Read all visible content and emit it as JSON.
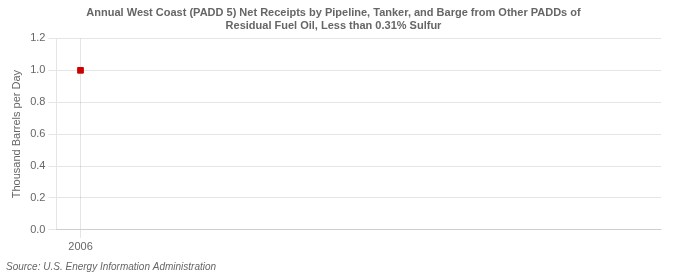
{
  "chart_data": {
    "type": "scatter",
    "title": "Annual West Coast (PADD 5) Net Receipts by Pipeline, Tanker, and Barge from Other PADDs of\nResidual Fuel Oil, Less than 0.31% Sulfur",
    "ylabel": "Thousand Barrels per Day",
    "source": "Source: U.S. Energy Information Administration",
    "x": [
      2006
    ],
    "values": [
      1.0
    ],
    "color": "#cc0000",
    "marker": "square",
    "xlim": [
      2005.4,
      2020.5
    ],
    "xticks": [
      2006
    ],
    "ylim": [
      0.0,
      1.2
    ],
    "yticks": [
      {
        "value": 0,
        "label": "0.0"
      },
      0.2,
      0.4,
      0.6,
      0.8,
      {
        "value": 1,
        "label": "1.0"
      },
      1.2
    ],
    "grid": true
  }
}
